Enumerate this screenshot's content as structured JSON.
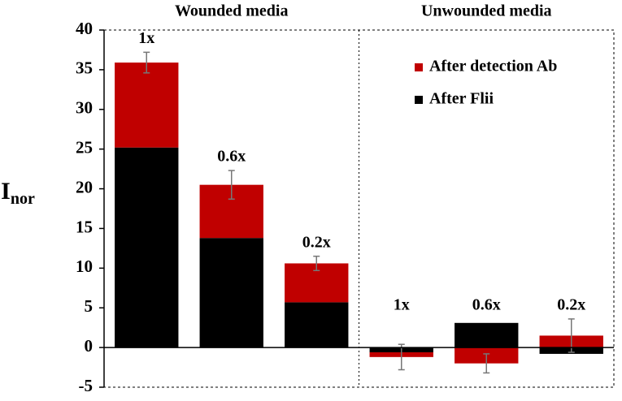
{
  "chart_data": {
    "type": "stacked_bar",
    "groups": [
      "Wounded media",
      "Unwounded media"
    ],
    "categories": [
      "1x",
      "0.6x",
      "0.2x",
      "1x",
      "0.6x",
      "0.2x"
    ],
    "y_label": "I",
    "y_label_sub": "nor",
    "series": [
      {
        "name": "After Flii",
        "color": "#000000",
        "values": [
          25.2,
          13.8,
          5.7,
          -0.6,
          3.1,
          -0.8
        ]
      },
      {
        "name": "After detection Ab",
        "color": "#c00000",
        "values": [
          10.7,
          6.7,
          4.9,
          -0.6,
          -2.0,
          1.5
        ],
        "errors": [
          1.3,
          1.8,
          0.9,
          1.6,
          1.2,
          2.1
        ]
      }
    ],
    "ylim": [
      -5,
      40
    ],
    "yticks": [
      -5,
      0,
      5,
      10,
      15,
      20,
      25,
      30,
      35,
      40
    ]
  }
}
